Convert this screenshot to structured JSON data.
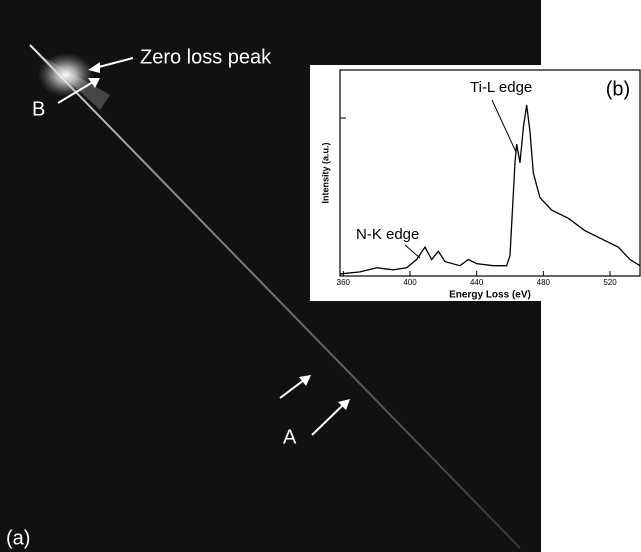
{
  "panel_a": {
    "label": "(a)",
    "zero_loss_label": "Zero loss peak",
    "label_b": "B",
    "label_a": "A"
  },
  "chart_data": {
    "type": "line",
    "panel_label": "(b)",
    "xlabel": "Energy Loss (eV)",
    "ylabel": "Intensity (a.u.)",
    "annotations": [
      "Ti-L edge",
      "N-K edge"
    ],
    "xlim": [
      358,
      538
    ],
    "xticks": [
      360,
      400,
      440,
      480,
      520
    ],
    "ylim": [
      0,
      100
    ],
    "x": [
      358,
      370,
      380,
      390,
      398,
      404,
      409,
      413,
      417,
      421,
      430,
      435,
      440,
      450,
      458,
      460,
      462,
      463,
      464,
      466,
      468,
      470,
      472,
      474,
      478,
      485,
      495,
      505,
      515,
      525,
      532,
      538
    ],
    "series": [
      {
        "color": "#000000",
        "values": [
          1,
          2,
          4,
          3,
          4,
          8,
          14,
          8,
          12,
          7,
          5,
          8,
          6,
          5,
          5,
          10,
          40,
          55,
          64,
          55,
          72,
          83,
          70,
          50,
          38,
          32,
          28,
          22,
          18,
          14,
          8,
          5
        ]
      }
    ]
  }
}
